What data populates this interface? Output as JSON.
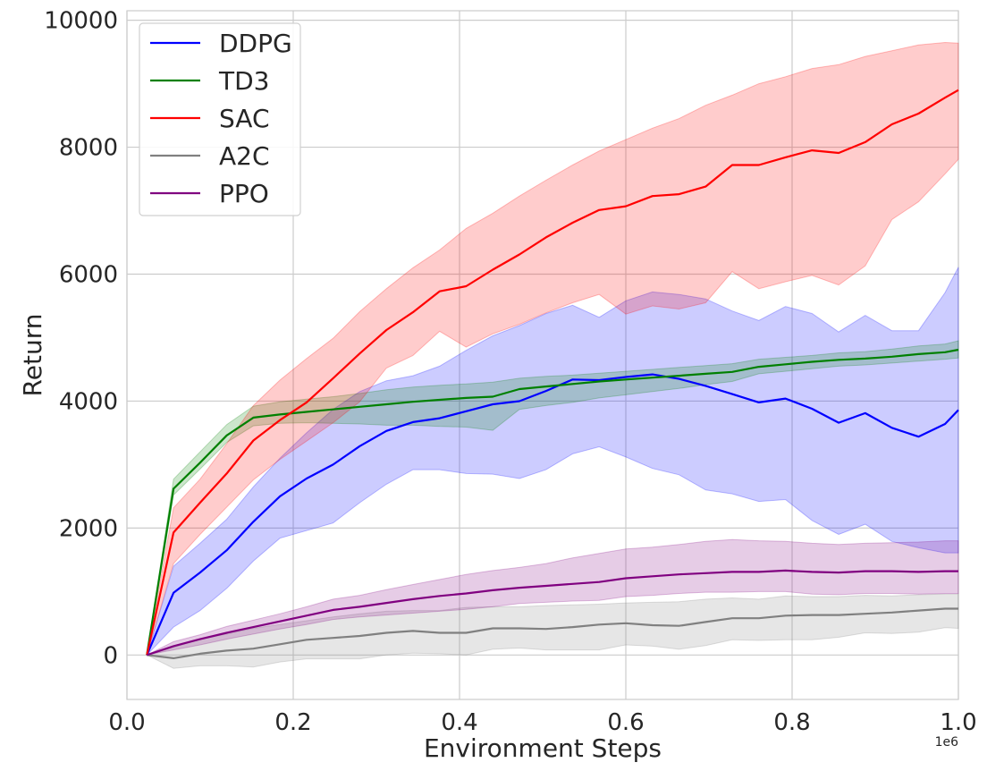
{
  "chart_data": {
    "type": "line",
    "xlabel": "Environment Steps",
    "ylabel": "Return",
    "x_offset_label": "1e6",
    "xlim": [
      0.0,
      1.0
    ],
    "ylim": [
      -700,
      10150
    ],
    "xticks": [
      0.0,
      0.2,
      0.4,
      0.6,
      0.8,
      1.0
    ],
    "xtick_labels": [
      "0.0",
      "0.2",
      "0.4",
      "0.6",
      "0.8",
      "1.0"
    ],
    "yticks": [
      0,
      2000,
      4000,
      6000,
      8000,
      10000
    ],
    "ytick_labels": [
      "0",
      "2000",
      "4000",
      "6000",
      "8000",
      "10000"
    ],
    "grid": true,
    "legend_position": "top-left",
    "x": [
      0.024,
      0.056,
      0.088,
      0.12,
      0.152,
      0.184,
      0.216,
      0.248,
      0.28,
      0.312,
      0.344,
      0.376,
      0.408,
      0.44,
      0.472,
      0.504,
      0.536,
      0.568,
      0.6,
      0.632,
      0.664,
      0.696,
      0.728,
      0.76,
      0.792,
      0.824,
      0.856,
      0.888,
      0.92,
      0.952,
      0.984,
      1.0
    ],
    "series": [
      {
        "name": "DDPG",
        "color": "#0000ff",
        "values": [
          0,
          980,
          1300,
          1650,
          2100,
          2500,
          2780,
          3000,
          3290,
          3530,
          3670,
          3730,
          3840,
          3950,
          4000,
          4160,
          4340,
          4330,
          4380,
          4420,
          4350,
          4240,
          4110,
          3980,
          4040,
          3880,
          3660,
          3810,
          3580,
          3440,
          3640,
          3860
        ],
        "lower": [
          0,
          440,
          700,
          1050,
          1480,
          1840,
          1960,
          2080,
          2400,
          2690,
          2920,
          2920,
          2860,
          2850,
          2780,
          2920,
          3170,
          3280,
          3120,
          2940,
          2840,
          2600,
          2540,
          2420,
          2450,
          2120,
          1900,
          2060,
          1790,
          1690,
          1610,
          1610
        ],
        "upper": [
          0,
          1400,
          1760,
          2140,
          2650,
          3100,
          3500,
          3870,
          4150,
          4320,
          4400,
          4550,
          4800,
          5030,
          5190,
          5380,
          5510,
          5320,
          5580,
          5720,
          5680,
          5610,
          5420,
          5270,
          5490,
          5380,
          5090,
          5350,
          5110,
          5110,
          5710,
          6110
        ]
      },
      {
        "name": "TD3",
        "color": "#008000",
        "values": [
          0,
          2620,
          3030,
          3460,
          3740,
          3790,
          3830,
          3870,
          3910,
          3950,
          3990,
          4020,
          4050,
          4070,
          4190,
          4230,
          4270,
          4310,
          4340,
          4370,
          4400,
          4430,
          4460,
          4540,
          4580,
          4620,
          4650,
          4670,
          4700,
          4740,
          4770,
          4810
        ],
        "lower": [
          0,
          2520,
          2930,
          3350,
          3610,
          3650,
          3660,
          3650,
          3640,
          3620,
          3620,
          3600,
          3590,
          3540,
          3870,
          3930,
          3980,
          4050,
          4100,
          4150,
          4200,
          4260,
          4310,
          4430,
          4470,
          4510,
          4550,
          4570,
          4600,
          4630,
          4660,
          4680
        ],
        "upper": [
          0,
          2770,
          3200,
          3630,
          3920,
          3990,
          4030,
          4070,
          4120,
          4180,
          4220,
          4250,
          4270,
          4300,
          4360,
          4390,
          4410,
          4440,
          4470,
          4500,
          4530,
          4560,
          4590,
          4660,
          4690,
          4720,
          4760,
          4780,
          4820,
          4870,
          4900,
          4950
        ]
      },
      {
        "name": "SAC",
        "color": "#ff0000",
        "values": [
          0,
          1930,
          2400,
          2860,
          3380,
          3700,
          3980,
          4360,
          4750,
          5120,
          5400,
          5730,
          5810,
          6070,
          6310,
          6580,
          6810,
          7010,
          7070,
          7230,
          7260,
          7380,
          7720,
          7720,
          7840,
          7950,
          7910,
          8080,
          8360,
          8530,
          8780,
          8900
        ],
        "lower": [
          0,
          1440,
          1900,
          2330,
          2760,
          3080,
          3370,
          3660,
          3990,
          4520,
          4720,
          5100,
          4850,
          5060,
          5210,
          5390,
          5550,
          5680,
          5370,
          5500,
          5450,
          5550,
          6040,
          5770,
          5880,
          5980,
          5830,
          6130,
          6860,
          7140,
          7580,
          7810
        ],
        "upper": [
          0,
          2320,
          2770,
          3330,
          3930,
          4330,
          4670,
          4990,
          5410,
          5770,
          6100,
          6380,
          6720,
          6960,
          7230,
          7480,
          7720,
          7940,
          8120,
          8300,
          8450,
          8660,
          8820,
          9000,
          9110,
          9240,
          9300,
          9430,
          9520,
          9610,
          9650,
          9640
        ]
      },
      {
        "name": "A2C",
        "color": "#808080",
        "values": [
          0,
          -50,
          20,
          70,
          100,
          170,
          240,
          270,
          300,
          350,
          380,
          350,
          350,
          420,
          420,
          410,
          440,
          480,
          500,
          470,
          460,
          520,
          580,
          580,
          620,
          630,
          630,
          650,
          670,
          700,
          730,
          730
        ],
        "lower": [
          0,
          -210,
          -170,
          -170,
          -190,
          -110,
          -60,
          -60,
          -60,
          0,
          30,
          20,
          0,
          90,
          110,
          80,
          80,
          80,
          160,
          140,
          90,
          150,
          240,
          230,
          240,
          240,
          280,
          350,
          340,
          360,
          430,
          420
        ],
        "upper": [
          0,
          120,
          250,
          330,
          420,
          480,
          540,
          600,
          650,
          690,
          700,
          700,
          750,
          760,
          760,
          780,
          790,
          800,
          820,
          830,
          840,
          880,
          900,
          880,
          930,
          920,
          920,
          940,
          930,
          950,
          960,
          960
        ]
      },
      {
        "name": "PPO",
        "color": "#800080",
        "values": [
          0,
          140,
          250,
          350,
          440,
          530,
          620,
          710,
          760,
          820,
          880,
          930,
          970,
          1020,
          1060,
          1090,
          1120,
          1150,
          1210,
          1240,
          1270,
          1290,
          1310,
          1310,
          1330,
          1310,
          1300,
          1320,
          1320,
          1310,
          1320,
          1320
        ],
        "lower": [
          0,
          80,
          160,
          250,
          330,
          410,
          480,
          560,
          600,
          630,
          660,
          690,
          720,
          760,
          810,
          830,
          850,
          860,
          920,
          940,
          970,
          990,
          990,
          1000,
          1000,
          960,
          950,
          970,
          970,
          960,
          970,
          970
        ],
        "upper": [
          0,
          210,
          320,
          450,
          550,
          650,
          760,
          880,
          940,
          1030,
          1110,
          1190,
          1270,
          1330,
          1380,
          1440,
          1530,
          1600,
          1670,
          1700,
          1740,
          1790,
          1820,
          1800,
          1790,
          1760,
          1740,
          1760,
          1770,
          1780,
          1800,
          1800
        ]
      }
    ]
  }
}
